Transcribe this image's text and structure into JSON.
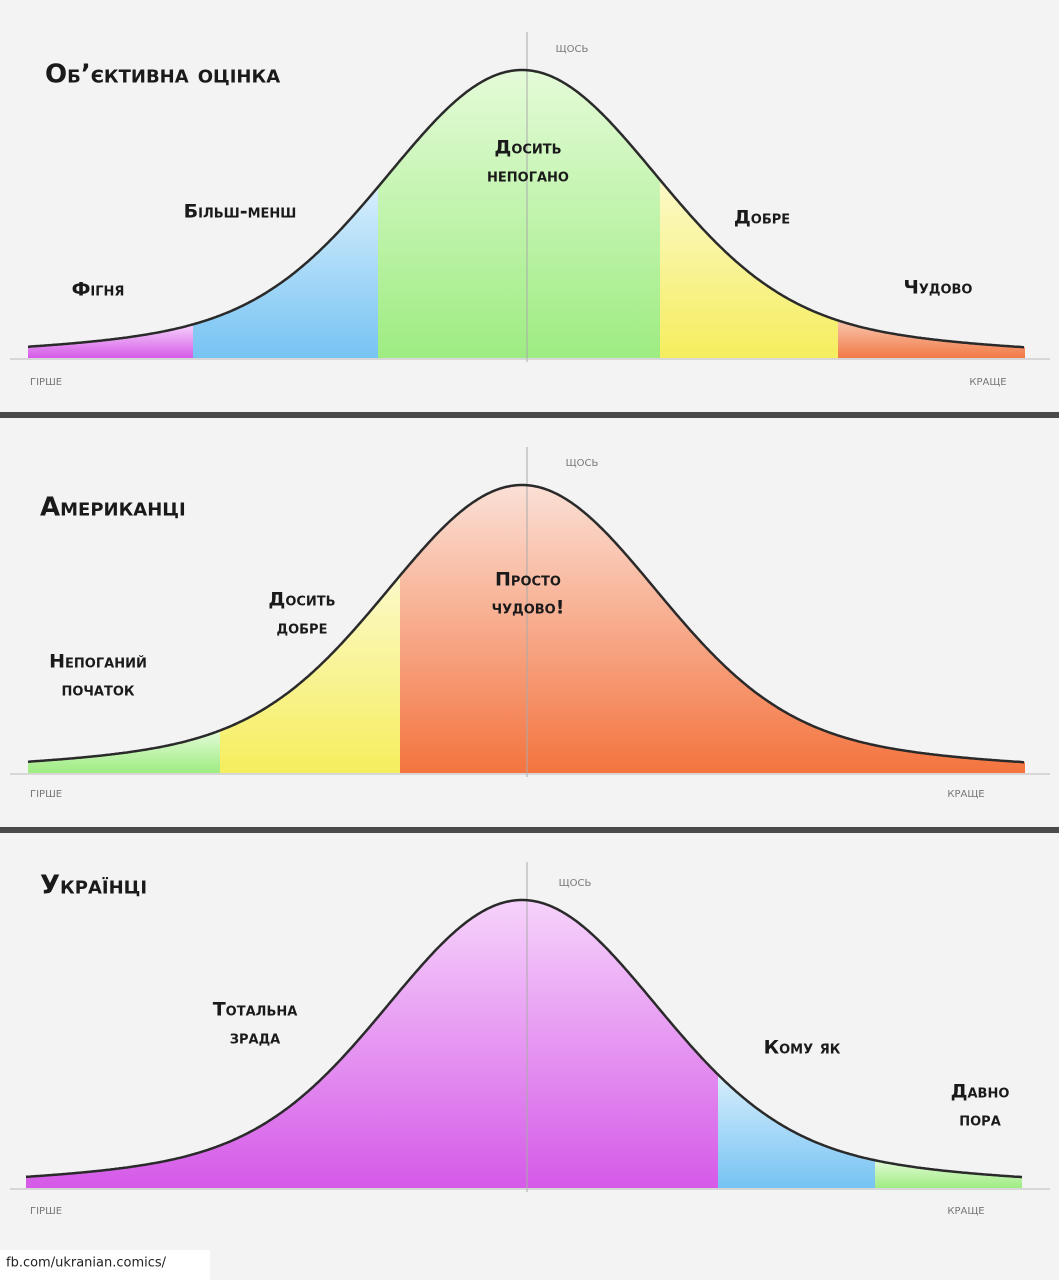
{
  "panels": [
    {
      "title": "Об’єктивна оцінка",
      "y_axis_label": "щось",
      "x_left_label": "гірше",
      "x_right_label": "краще",
      "segments": [
        [
          "Фігня"
        ],
        [
          "Більш-менш"
        ],
        [
          "Досить",
          "непогано"
        ],
        [
          "Добре"
        ],
        [
          "Чудово"
        ]
      ]
    },
    {
      "title": "Американці",
      "y_axis_label": "щось",
      "x_left_label": "гірше",
      "x_right_label": "краще",
      "segments": [
        [
          "Непоганий",
          "початок"
        ],
        [
          "Досить",
          "добре"
        ],
        [
          "Просто",
          "чудово!"
        ]
      ]
    },
    {
      "title": "Українці",
      "y_axis_label": "щось",
      "x_left_label": "гірше",
      "x_right_label": "краще",
      "segments": [
        [
          "Тотальна",
          "зрада"
        ],
        [
          "Кому як"
        ],
        [
          "Давно",
          "пора"
        ]
      ]
    }
  ],
  "footer": "fb.com/ukranian.comics/"
}
